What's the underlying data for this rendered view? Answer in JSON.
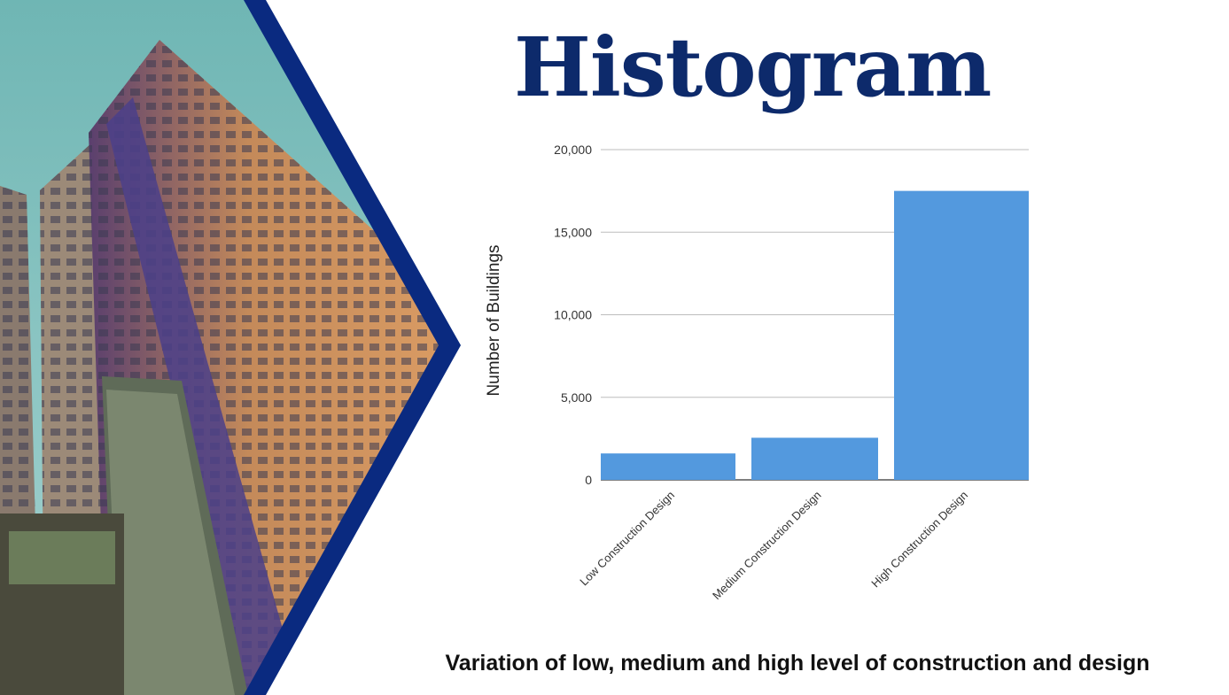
{
  "slide": {
    "title": "Histogram",
    "subtitle": "Variation of low, medium and high level of construction and design"
  },
  "colors": {
    "title": "#0d2a6b",
    "bar": "#5399de",
    "chevron": "#0a2a80",
    "gridline": "#bdbdbd"
  },
  "photo": {
    "description_icon": "building-photo"
  },
  "chart_data": {
    "type": "bar",
    "categories": [
      "Low Construction Design",
      "Medium Construction Design",
      "High Construction Design"
    ],
    "values": [
      1600,
      2550,
      17500
    ],
    "ylabel": "Number of Buildings",
    "ylim": [
      0,
      20000
    ],
    "yticks": [
      0,
      5000,
      10000,
      15000,
      20000
    ],
    "ytick_labels": [
      "0",
      "5,000",
      "10,000",
      "15,000",
      "20,000"
    ],
    "grid": true,
    "legend": "none"
  }
}
